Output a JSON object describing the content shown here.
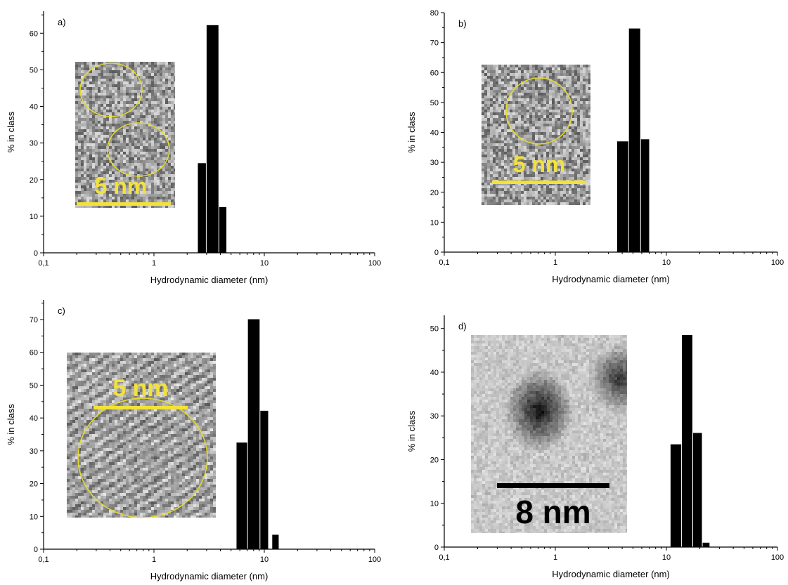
{
  "colors": {
    "bar": "#000000",
    "scale_yellow": "#f2e23a",
    "circle_yellow": "#e6dc2a",
    "scale_black": "#000000"
  },
  "chart_data": [
    {
      "type": "bar",
      "panel": "a)",
      "xlabel": "Hydrodynamic diameter (nm)",
      "ylabel": "% in class",
      "x_scale": "log",
      "xlim": [
        0.1,
        100
      ],
      "ylim": [
        0,
        66
      ],
      "x_ticks": [
        "0,1",
        "1",
        "10",
        "100"
      ],
      "y_ticks": [
        0,
        10,
        20,
        30,
        40,
        50,
        60
      ],
      "bins": [
        {
          "from": 2.5,
          "to": 3.0,
          "value": 24.5
        },
        {
          "from": 3.0,
          "to": 3.9,
          "value": 62.2
        },
        {
          "from": 3.9,
          "to": 4.6,
          "value": 12.5
        }
      ],
      "inset": {
        "scale_label": "5 nm",
        "style": "yellow",
        "circles": 2
      }
    },
    {
      "type": "bar",
      "panel": "b)",
      "xlabel": "Hydrodynamic diameter (nm)",
      "ylabel": "% in class",
      "x_scale": "log",
      "xlim": [
        0.1,
        100
      ],
      "ylim": [
        0,
        80
      ],
      "x_ticks": [
        "0,1",
        "1",
        "10",
        "100"
      ],
      "y_ticks": [
        0,
        10,
        20,
        30,
        40,
        50,
        60,
        70,
        80
      ],
      "bins": [
        {
          "from": 3.6,
          "to": 4.6,
          "value": 37.0
        },
        {
          "from": 4.6,
          "to": 5.9,
          "value": 74.7
        },
        {
          "from": 5.9,
          "to": 7.1,
          "value": 37.7
        }
      ],
      "inset": {
        "scale_label": "5 nm",
        "style": "yellow",
        "circles": 1
      }
    },
    {
      "type": "bar",
      "panel": "c)",
      "xlabel": "Hydrodynamic diameter (nm)",
      "ylabel": "% in class",
      "x_scale": "log",
      "xlim": [
        0.1,
        100
      ],
      "ylim": [
        0,
        76
      ],
      "x_ticks": [
        "0,1",
        "1",
        "10",
        "100"
      ],
      "y_ticks": [
        0,
        10,
        20,
        30,
        40,
        50,
        60,
        70
      ],
      "bins": [
        {
          "from": 5.6,
          "to": 7.1,
          "value": 32.5
        },
        {
          "from": 7.1,
          "to": 9.2,
          "value": 70.1
        },
        {
          "from": 9.2,
          "to": 11.0,
          "value": 42.2
        },
        {
          "from": 11.8,
          "to": 13.7,
          "value": 4.4
        }
      ],
      "inset": {
        "scale_label": "5 nm",
        "style": "yellow",
        "circles": 1
      }
    },
    {
      "type": "bar",
      "panel": "d)",
      "xlabel": "Hydrodynamic diameter (nm)",
      "ylabel": "% in class",
      "x_scale": "log",
      "xlim": [
        0.1,
        100
      ],
      "ylim": [
        0,
        53
      ],
      "x_ticks": [
        "0,1",
        "1",
        "10",
        "100"
      ],
      "y_ticks": [
        0,
        10,
        20,
        30,
        40,
        50
      ],
      "bins": [
        {
          "from": 10.9,
          "to": 13.8,
          "value": 23.5
        },
        {
          "from": 13.8,
          "to": 17.4,
          "value": 48.5
        },
        {
          "from": 17.4,
          "to": 21.2,
          "value": 26.1
        },
        {
          "from": 21.2,
          "to": 24.8,
          "value": 1.0
        }
      ],
      "inset": {
        "scale_label": "8 nm",
        "style": "black",
        "circles": 0
      }
    }
  ]
}
